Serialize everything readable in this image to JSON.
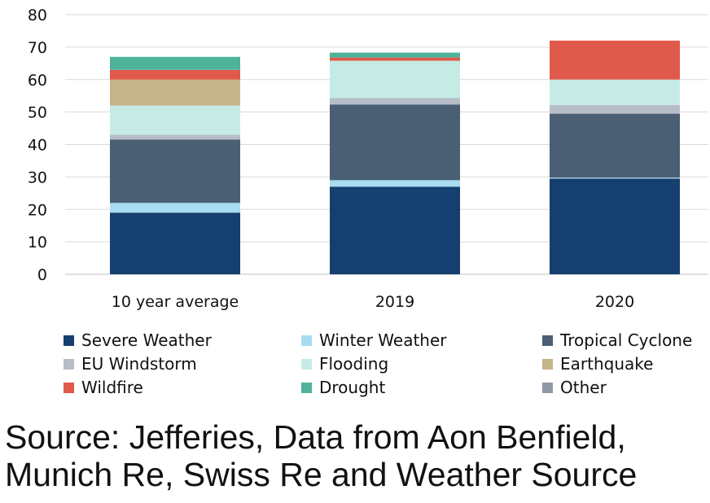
{
  "chart_data": {
    "type": "bar",
    "stacked": true,
    "categories": [
      "10 year average",
      "2019",
      "2020"
    ],
    "ylim": [
      0,
      80
    ],
    "yticks": [
      0,
      10,
      20,
      30,
      40,
      50,
      60,
      70,
      80
    ],
    "grid": true,
    "legend_position": "bottom",
    "series": [
      {
        "name": "Severe Weather",
        "color": "#153f6f",
        "values": [
          19,
          27,
          29.5
        ]
      },
      {
        "name": "Winter Weather",
        "color": "#a9dcf2",
        "values": [
          3,
          2,
          0.3
        ]
      },
      {
        "name": "Tropical Cyclone",
        "color": "#4a5e74",
        "values": [
          19.5,
          23.3,
          19.7
        ]
      },
      {
        "name": "EU Windstorm",
        "color": "#b7bdc9",
        "values": [
          1.5,
          2,
          2.7
        ]
      },
      {
        "name": "Flooding",
        "color": "#c6ebe4",
        "values": [
          9,
          11.5,
          7.8
        ]
      },
      {
        "name": "Earthquake",
        "color": "#c5b38a",
        "values": [
          8,
          0,
          0
        ]
      },
      {
        "name": "Wildfire",
        "color": "#e05a4b",
        "values": [
          3,
          1,
          12
        ]
      },
      {
        "name": "Drought",
        "color": "#4fb39c",
        "values": [
          4,
          1.5,
          0
        ]
      },
      {
        "name": "Other",
        "color": "#8e99a6",
        "values": [
          0,
          0,
          0
        ]
      }
    ]
  },
  "source_text": "Source: Jefferies, Data from Aon Benfield, Munich Re, Swiss Re and Weather Source"
}
